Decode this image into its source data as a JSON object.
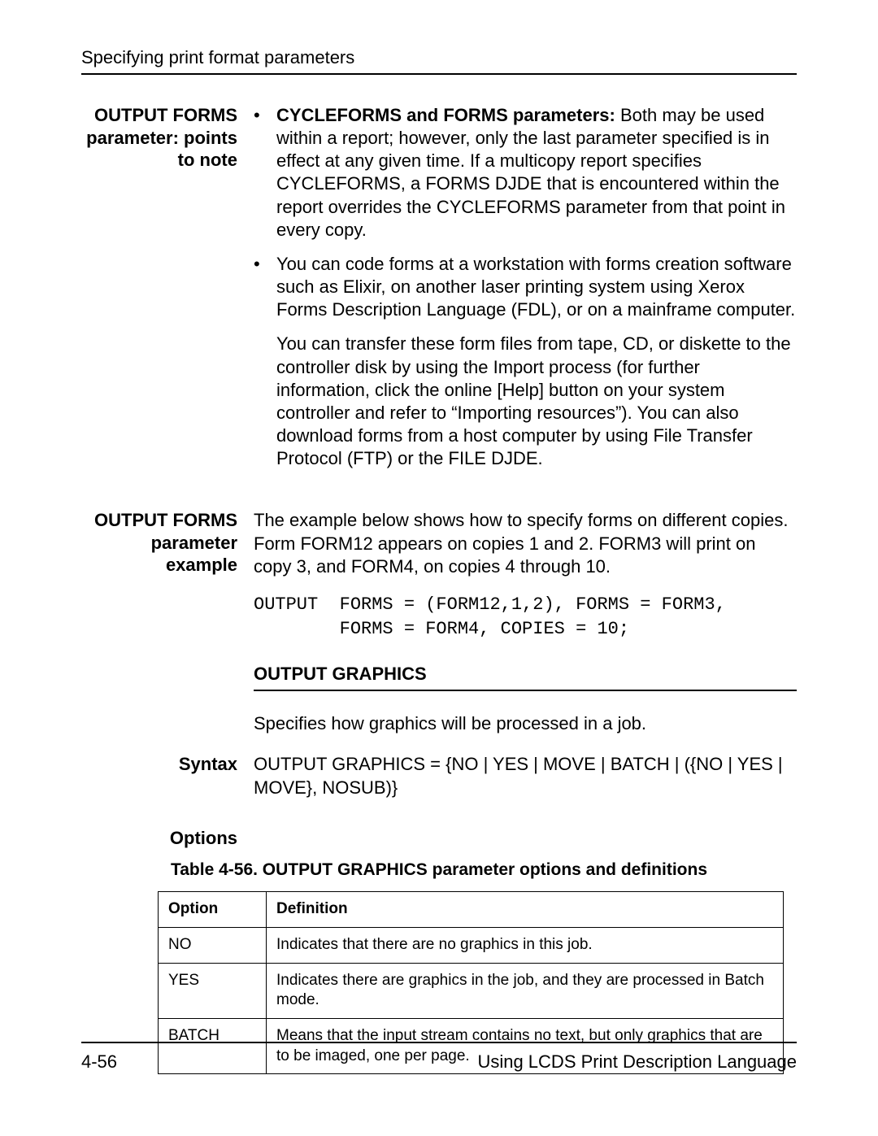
{
  "header": {
    "running_title": "Specifying print format parameters"
  },
  "sections": {
    "points": {
      "label_line1": "OUTPUT FORMS",
      "label_line2": "parameter: points",
      "label_line3": "to note",
      "bullets": [
        {
          "lead_bold": "CYCLEFORMS and FORMS parameters:",
          "rest": " Both may be used within a report; however, only the last parameter specified is in effect at any given time. If a multicopy report specifies CYCLEFORMS, a FORMS DJDE that is encountered within the report overrides the CYCLEFORMS parameter from that point in every copy."
        },
        {
          "lead_bold": "",
          "rest": "You can code forms at a workstation with forms creation software such as Elixir, on another laser printing system using Xerox Forms Description Language (FDL), or on a mainframe computer."
        }
      ],
      "followup_para": "You can transfer these form files from tape, CD, or diskette to the controller disk by using the Import process (for further information, click the online [Help] button on your system controller and refer to “Importing resources”). You can also download forms from a host computer by using File Transfer Protocol (FTP) or the FILE DJDE."
    },
    "example": {
      "label_line1": "OUTPUT FORMS",
      "label_line2": "parameter",
      "label_line3": "example",
      "intro": "The example below shows how to specify forms on different copies. Form FORM12 appears on copies 1 and 2. FORM3 will print on copy 3, and FORM4, on copies 4 through 10.",
      "code_line1": "OUTPUT  FORMS = (FORM12,1,2), FORMS = FORM3,",
      "code_line2": "        FORMS = FORM4, COPIES = 10;"
    },
    "graphics": {
      "heading": "OUTPUT GRAPHICS",
      "desc": "Specifies how graphics will be processed in a job.",
      "syntax_label": "Syntax",
      "syntax_text": "OUTPUT GRAPHICS = {NO | YES | MOVE | BATCH | ({NO | YES | MOVE}, NOSUB)}",
      "options_label": "Options",
      "table_caption": "Table 4-56. OUTPUT GRAPHICS parameter options and definitions",
      "table": {
        "col_option": "Option",
        "col_def": "Definition",
        "rows": [
          {
            "opt": "NO",
            "def": "Indicates that there are no graphics in this job."
          },
          {
            "opt": "YES",
            "def": "Indicates there are graphics in the job, and they are processed in Batch mode."
          },
          {
            "opt": "BATCH",
            "def": "Means that the input stream contains no text, but only graphics that are to be imaged, one per page."
          }
        ]
      }
    }
  },
  "footer": {
    "page_num": "4-56",
    "doc_title": "Using LCDS Print Description Language"
  }
}
